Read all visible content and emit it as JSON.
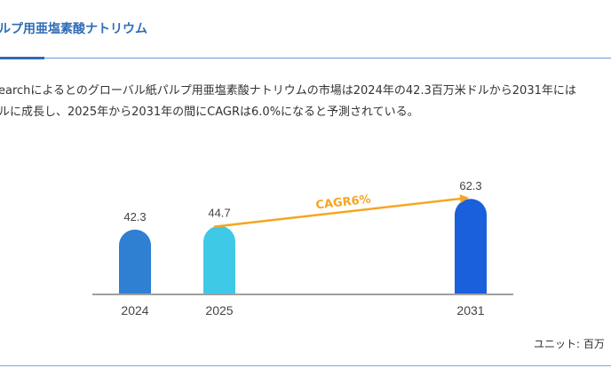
{
  "section": {
    "title": "ルプ用亜塩素酸ナトリウム",
    "paragraph_line1": "earchによるとのグローバル紙パルプ用亜塩素酸ナトリウムの市場は2024年の42.3百万米ドルから2031年には",
    "paragraph_line2": "ルに成長し、2025年から2031年の間にCAGRは6.0%になると予測されている。",
    "unit_label": "ユニット: 百万"
  },
  "chart_data": {
    "type": "bar",
    "categories": [
      "2024",
      "2025",
      "2031"
    ],
    "values": [
      42.3,
      44.7,
      62.3
    ],
    "data_labels": [
      "42.3",
      "44.7",
      "62.3"
    ],
    "colors": [
      "#2f7fd3",
      "#3ec9e6",
      "#1a5fdc"
    ],
    "annotation": {
      "text": "CAGR6%",
      "from": "2025",
      "to": "2031",
      "color": "#f5a623"
    },
    "ylim": [
      0,
      65
    ],
    "grid": false
  }
}
